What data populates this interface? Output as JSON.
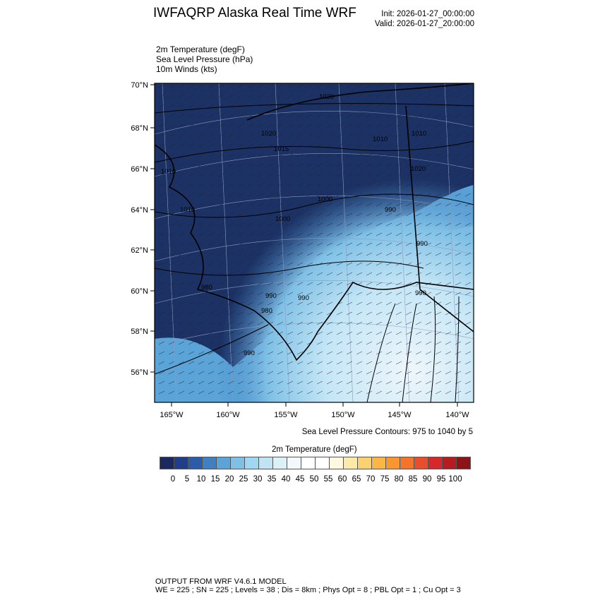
{
  "header": {
    "title": "IWFAQRP Alaska Real Time WRF",
    "init": "Init: 2026-01-27_00:00:00",
    "valid": "Valid: 2026-01-27_20:00:00"
  },
  "fields": [
    "2m Temperature   (degF)",
    "Sea Level Pressure   (hPa)",
    "10m Winds   (kts)"
  ],
  "map": {
    "lat_labels": [
      "70°N",
      "68°N",
      "66°N",
      "64°N",
      "62°N",
      "60°N",
      "58°N",
      "56°N"
    ],
    "lon_labels": [
      "165°W",
      "160°W",
      "155°W",
      "150°W",
      "145°W",
      "140°W"
    ],
    "contour_labels": [
      "1020",
      "1020",
      "1015",
      "1010",
      "1010",
      "1010",
      "1020",
      "1010",
      "1000",
      "1000",
      "990",
      "990",
      "990",
      "980",
      "990",
      "990",
      "990",
      "980"
    ],
    "colors": {
      "cold": "#1c3264",
      "cool": "#3f7fc0",
      "mild": "#a8dcf4",
      "warm": "#eef6fb"
    }
  },
  "slp_note": "Sea Level Pressure Contours: 975 to 1040 by 5",
  "colorbar": {
    "title": "2m Temperature  (degF)",
    "colors": [
      "#1a2a5e",
      "#213f88",
      "#2a5caa",
      "#3f80c0",
      "#5aa4d8",
      "#7fc0e6",
      "#a0d8f4",
      "#c0e4f4",
      "#dcf0f8",
      "#f2f8fc",
      "#ffffff",
      "#ffffff",
      "#fff8e0",
      "#feeaa8",
      "#fdd070",
      "#fcb646",
      "#fa9630",
      "#f4742c",
      "#e84e2c",
      "#d4282a",
      "#b41c22",
      "#8c1418"
    ],
    "labels": [
      "0",
      "5",
      "10",
      "15",
      "20",
      "25",
      "30",
      "35",
      "40",
      "45",
      "50",
      "55",
      "60",
      "65",
      "70",
      "75",
      "80",
      "85",
      "90",
      "95",
      "100"
    ]
  },
  "footer": {
    "line1": "OUTPUT FROM WRF V4.6.1 MODEL",
    "line2": "WE = 225 ; SN = 225 ; Levels = 38 ; Dis = 8km ; Phys Opt = 8 ; PBL Opt = 1 ; Cu Opt = 3"
  }
}
